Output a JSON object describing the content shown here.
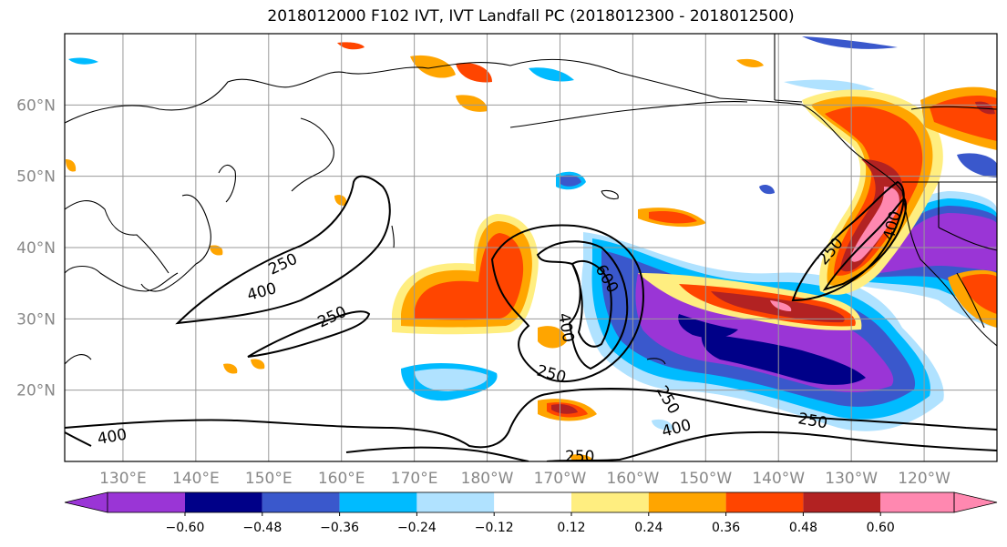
{
  "title": "2018012000 F102 IVT, IVT Landfall PC (2018012300 - 2018012500)",
  "lat_ticks": [
    {
      "lat": 60,
      "label": "60°N"
    },
    {
      "lat": 50,
      "label": "50°N"
    },
    {
      "lat": 40,
      "label": "40°N"
    },
    {
      "lat": 30,
      "label": "30°N"
    },
    {
      "lat": 20,
      "label": "20°N"
    }
  ],
  "lon_ticks": [
    {
      "lon": 130,
      "label": "130°E"
    },
    {
      "lon": 140,
      "label": "140°E"
    },
    {
      "lon": 150,
      "label": "150°E"
    },
    {
      "lon": 160,
      "label": "160°E"
    },
    {
      "lon": 170,
      "label": "170°E"
    },
    {
      "lon": 180,
      "label": "180°W"
    },
    {
      "lon": 190,
      "label": "170°W"
    },
    {
      "lon": 200,
      "label": "160°W"
    },
    {
      "lon": 210,
      "label": "150°W"
    },
    {
      "lon": 220,
      "label": "140°W"
    },
    {
      "lon": 230,
      "label": "130°W"
    },
    {
      "lon": 240,
      "label": "120°W"
    }
  ],
  "contour_labels": [
    "250",
    "400",
    "250",
    "600",
    "400",
    "250",
    "250",
    "400",
    "250",
    "250",
    "400",
    "400",
    "250"
  ],
  "colorbar": {
    "colors": [
      "#9a35d6",
      "#000088",
      "#3a58cc",
      "#00bbff",
      "#b0e2ff",
      "#ffffff",
      "#ffee80",
      "#ffa500",
      "#ff4500",
      "#b22222",
      "#ff88b0",
      "#ff88b0"
    ],
    "ticks": [
      "−0.60",
      "−0.48",
      "−0.36",
      "−0.24",
      "−0.12",
      "0.12",
      "0.24",
      "0.36",
      "0.48",
      "0.60"
    ]
  }
}
